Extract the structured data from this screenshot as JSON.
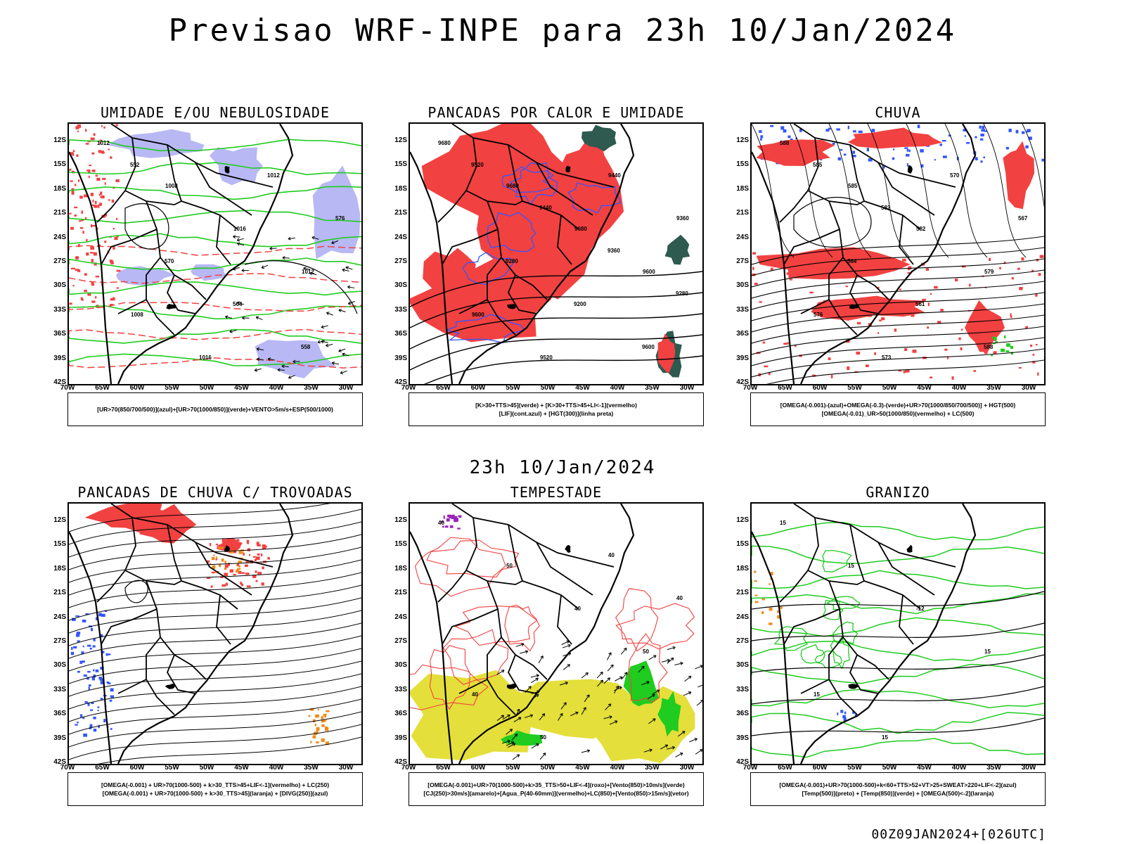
{
  "title": "Previsao WRF-INPE  para 23h 10/Jan/2024",
  "mid_title": "23h 10/Jan/2024",
  "footer": "00Z09JAN2024+[026UTC]",
  "lat_labels": [
    "12S",
    "15S",
    "18S",
    "21S",
    "24S",
    "27S",
    "30S",
    "33S",
    "36S",
    "39S",
    "42S"
  ],
  "lon_labels": [
    "70W",
    "65W",
    "60W",
    "55W",
    "50W",
    "45W",
    "40W",
    "35W",
    "30W"
  ],
  "colors": {
    "red": "#f24141",
    "green": "#1fcc1f",
    "blue": "#3355ff",
    "lavender": "#b0b0f4",
    "yellow": "#e4df3a",
    "darkteal": "#2e5a50",
    "purple": "#9922bb",
    "orange": "#f08a1a"
  },
  "panels": [
    {
      "id": "umidade",
      "title": "UMIDADE E/OU NEBULOSIDADE",
      "legend": [
        "[UR>70(850/700/500)](azul)+[UR>70(1000/850)](verde)+VENTO>5m/s+ESP(500/1000)"
      ],
      "contour_labels": [
        "1012",
        "1008",
        "1016",
        "1012",
        "1008",
        "1016",
        "1012",
        "576",
        "570",
        "564",
        "558",
        "552"
      ]
    },
    {
      "id": "pancadas-calor",
      "title": "PANCADAS POR CALOR E UMIDADE",
      "legend": [
        "[K>30+TTS>45](verde) + [K>30+TTS>45+LI<-1](vermelho)",
        "[LIF](cont.azul) + [HGT(300)](linha preta)"
      ],
      "contour_labels": [
        "9680",
        "9680",
        "9680",
        "9600",
        "9600",
        "9520",
        "9440",
        "9360",
        "9280",
        "9200",
        "9600",
        "9520",
        "9440",
        "9360",
        "9280"
      ]
    },
    {
      "id": "chuva",
      "title": "CHUVA",
      "legend": [
        "[OMEGA(-0.001)-(azul)+OMEGA(-0.3)-(verde)+UR>70(1000/850/700/500)] + HGT(500)",
        "[OMEGA(-0.01)_UR>50(1000/850)(vermelho) + LC(500)"
      ],
      "contour_labels": [
        "588",
        "585",
        "582",
        "579",
        "576",
        "573",
        "570",
        "567",
        "564",
        "561",
        "588",
        "585",
        "582"
      ]
    },
    {
      "id": "pancadas-trovoadas",
      "title": "PANCADAS DE CHUVA C/ TROVOADAS",
      "legend": [
        "[OMEGA(-0.001) + UR>70(1000-500) + k>30_TTS>45+LIF<-1](vermelho) + LC(250)",
        "[OMEGA(-0.001) + UR>70(1000-500) + k>30_TTS>45](laranja) + [DIVG(250)](azul)"
      ],
      "contour_labels": []
    },
    {
      "id": "tempestade",
      "title": "TEMPESTADE",
      "legend": [
        "[OMEGA(-0.001)+UR>70(1000-500)+k>35_TTS>50+LIF<-4](roxo)+[Vento(850)>10m/s](verde)",
        "[CJ(250)>30m/s](amarelo)+[Agua_P(40-60mm)](vermelho)+LC(850)+[Vento(850)>15m/s](vetor)"
      ],
      "contour_labels": [
        "40",
        "50",
        "40",
        "50",
        "40",
        "50",
        "40",
        "40"
      ]
    },
    {
      "id": "granizo",
      "title": "GRANIZO",
      "legend": [
        "[OMEGA(-0.001)+UR>70(1000-500)+k<60+TTS>52+VT>25+SWEAT>220+LIF<-2](azul)",
        "[Temp(500)](preto) + [Temp(850)](verde) + [OMEGA(500)<-2](laranja)"
      ],
      "contour_labels": [
        "15",
        "15",
        "-12",
        "15",
        "15",
        "15"
      ]
    }
  ]
}
